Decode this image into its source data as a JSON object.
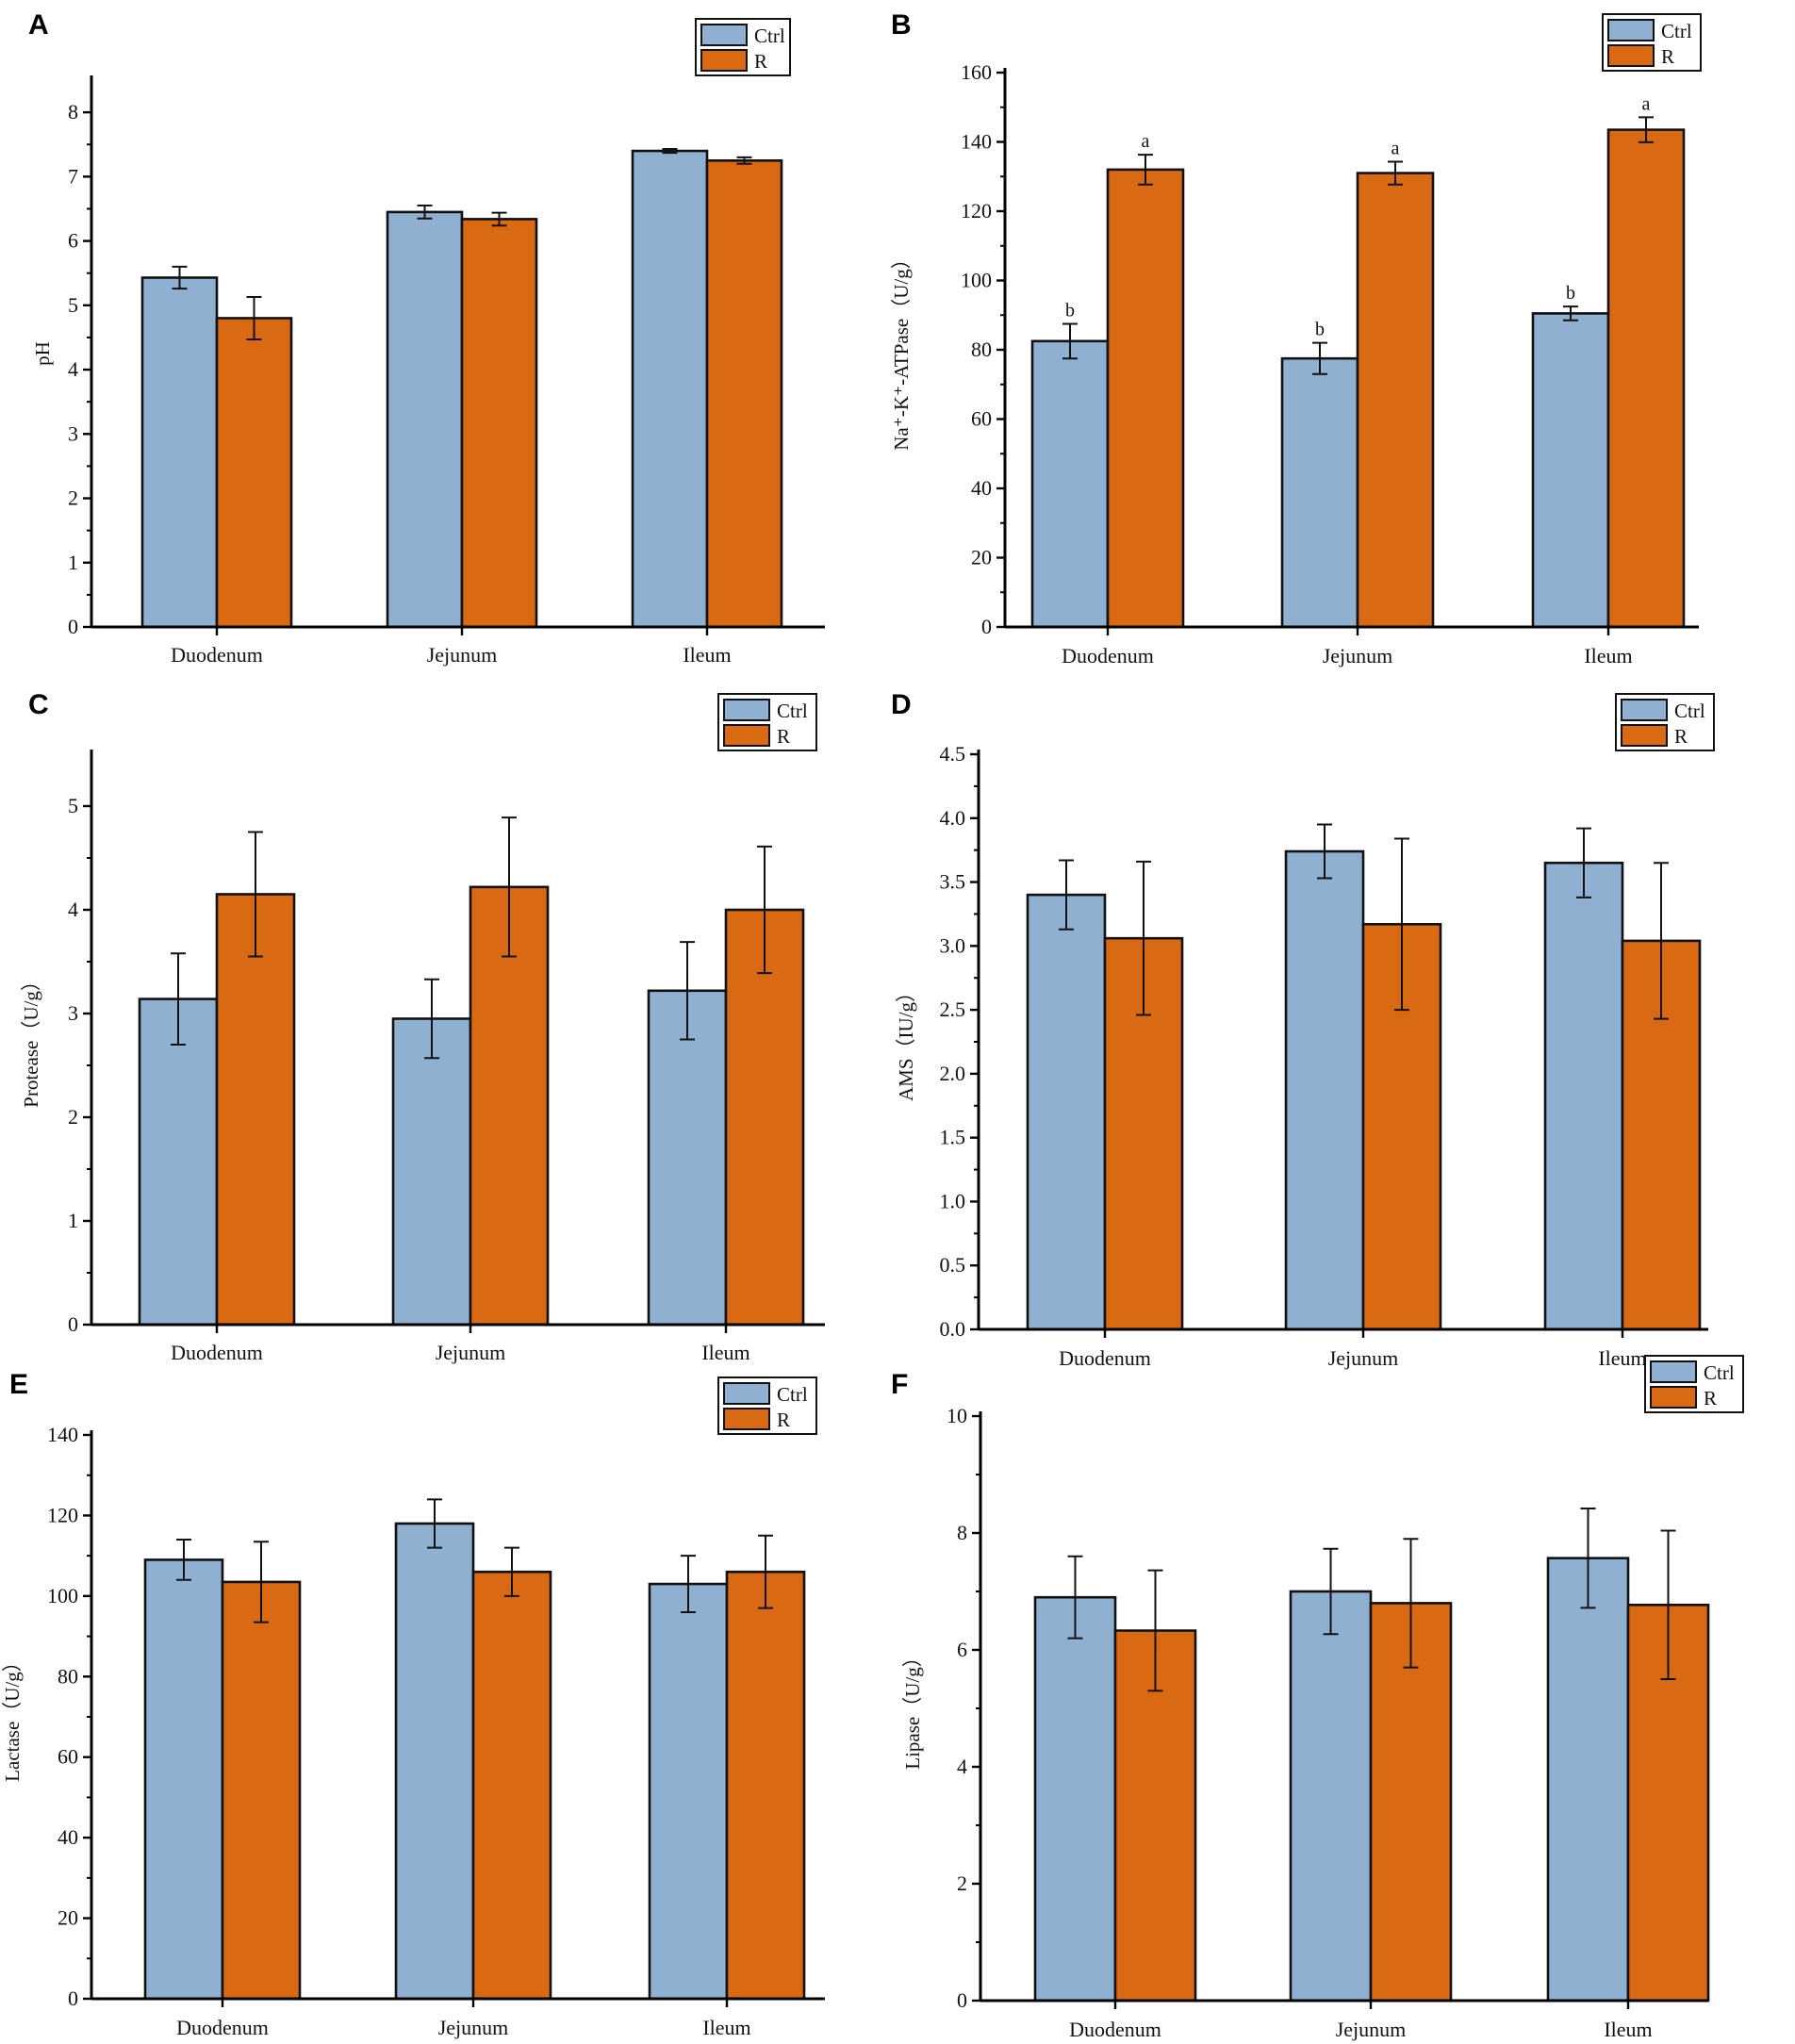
{
  "figure": {
    "colors": {
      "ctrl": "#8fb0d1",
      "r": "#d96912"
    }
  },
  "chart_data": [
    {
      "type": "bar",
      "panel": "A",
      "ylabel": "pH",
      "ylim": [
        0,
        8.5
      ],
      "yticks": [
        0,
        1,
        2,
        3,
        4,
        5,
        6,
        7,
        8
      ],
      "ytick_labels": [
        "0",
        "1",
        "2",
        "3",
        "4",
        "5",
        "6",
        "7",
        "8"
      ],
      "categories": [
        "Duodenum",
        "Jejunum",
        "Ileum"
      ],
      "legend": [
        "Ctrl",
        "R"
      ],
      "series": [
        {
          "name": "Ctrl",
          "values": [
            5.43,
            6.45,
            7.4
          ],
          "errors": [
            0.17,
            0.1,
            0.03
          ]
        },
        {
          "name": "R",
          "values": [
            4.8,
            6.34,
            7.25
          ],
          "errors": [
            0.33,
            0.1,
            0.05
          ]
        }
      ]
    },
    {
      "type": "bar",
      "panel": "B",
      "ylabel": "Na⁺-K⁺-ATPase（U/g）",
      "ylim": [
        0,
        160
      ],
      "yticks": [
        0,
        20,
        40,
        60,
        80,
        100,
        120,
        140,
        160
      ],
      "ytick_labels": [
        "0",
        "20",
        "40",
        "60",
        "80",
        "100",
        "120",
        "140",
        "160"
      ],
      "categories": [
        "Duodenum",
        "Jejunum",
        "Ileum"
      ],
      "legend": [
        "Ctrl",
        "R"
      ],
      "series": [
        {
          "name": "Ctrl",
          "values": [
            82.5,
            77.5,
            90.5
          ],
          "errors": [
            5,
            4.5,
            2
          ],
          "annotations": [
            "b",
            "b",
            "b"
          ]
        },
        {
          "name": "R",
          "values": [
            132,
            131,
            143.5
          ],
          "errors": [
            4.3,
            3.3,
            3.6
          ],
          "annotations": [
            "a",
            "a",
            "a"
          ]
        }
      ]
    },
    {
      "type": "bar",
      "panel": "C",
      "ylabel": "Protease（U/g）",
      "ylim": [
        0,
        5.5
      ],
      "yticks": [
        0,
        1,
        2,
        3,
        4,
        5
      ],
      "ytick_labels": [
        "0",
        "1",
        "2",
        "3",
        "4",
        "5"
      ],
      "categories": [
        "Duodenum",
        "Jejunum",
        "Ileum"
      ],
      "legend": [
        "Ctrl",
        "R"
      ],
      "series": [
        {
          "name": "Ctrl",
          "values": [
            3.14,
            2.95,
            3.22
          ],
          "errors": [
            0.44,
            0.38,
            0.47
          ]
        },
        {
          "name": "R",
          "values": [
            4.15,
            4.22,
            4.0
          ],
          "errors": [
            0.6,
            0.67,
            0.61
          ]
        }
      ]
    },
    {
      "type": "bar",
      "panel": "D",
      "ylabel": "AMS（IU/g）",
      "ylim": [
        0,
        4.5
      ],
      "yticks": [
        0,
        0.5,
        1,
        1.5,
        2,
        2.5,
        3,
        3.5,
        4,
        4.5
      ],
      "ytick_labels": [
        "0.0",
        "0.5",
        "1.0",
        "1.5",
        "2.0",
        "2.5",
        "3.0",
        "3.5",
        "4.0",
        "4.5"
      ],
      "categories": [
        "Duodenum",
        "Jejunum",
        "Ileum"
      ],
      "legend": [
        "Ctrl",
        "R"
      ],
      "series": [
        {
          "name": "Ctrl",
          "values": [
            3.4,
            3.74,
            3.65
          ],
          "errors": [
            0.27,
            0.21,
            0.27
          ]
        },
        {
          "name": "R",
          "values": [
            3.06,
            3.17,
            3.04
          ],
          "errors": [
            0.6,
            0.67,
            0.61
          ]
        }
      ]
    },
    {
      "type": "bar",
      "panel": "E",
      "ylabel": "Lactase（U/g）",
      "ylim": [
        0,
        140
      ],
      "yticks": [
        0,
        20,
        40,
        60,
        80,
        100,
        120,
        140
      ],
      "ytick_labels": [
        "0",
        "20",
        "40",
        "60",
        "80",
        "100",
        "120",
        "140"
      ],
      "categories": [
        "Duodenum",
        "Jejunum",
        "Ileum"
      ],
      "legend": [
        "Ctrl",
        "R"
      ],
      "series": [
        {
          "name": "Ctrl",
          "values": [
            109,
            118,
            103
          ],
          "errors": [
            5,
            6,
            7
          ]
        },
        {
          "name": "R",
          "values": [
            103.5,
            106,
            106
          ],
          "errors": [
            10,
            6,
            9
          ]
        }
      ]
    },
    {
      "type": "bar",
      "panel": "F",
      "ylabel": "Lipase（U/g）",
      "ylim": [
        0,
        10
      ],
      "yticks": [
        0,
        2,
        4,
        6,
        8,
        10
      ],
      "ytick_labels": [
        "0",
        "2",
        "4",
        "6",
        "8",
        "10"
      ],
      "categories": [
        "Duodenum",
        "Jejunum",
        "Ileum"
      ],
      "legend": [
        "Ctrl",
        "R"
      ],
      "series": [
        {
          "name": "Ctrl",
          "values": [
            6.9,
            7.0,
            7.57
          ],
          "errors": [
            0.7,
            0.73,
            0.85
          ]
        },
        {
          "name": "R",
          "values": [
            6.33,
            6.8,
            6.77
          ],
          "errors": [
            1.03,
            1.1,
            1.27
          ]
        }
      ]
    }
  ]
}
